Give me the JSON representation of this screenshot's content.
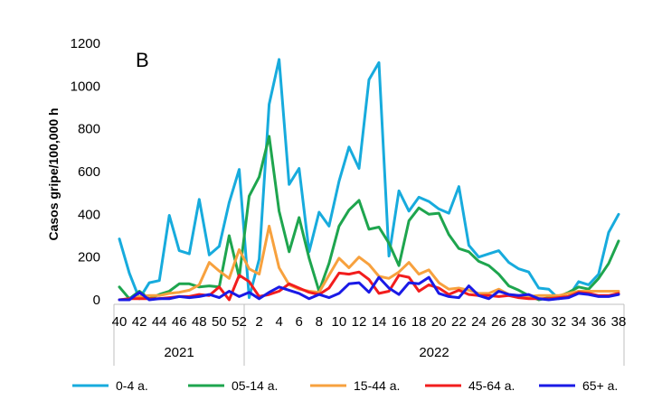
{
  "chart_data": {
    "type": "line",
    "panel_label": "B",
    "ylabel": "Casos gripe/100,000 h",
    "xlabel": "",
    "ylim": [
      0,
      1200
    ],
    "yticks": [
      0,
      200,
      400,
      600,
      800,
      1000,
      1200
    ],
    "grid": false,
    "legend_position": "bottom",
    "weeks": [
      40,
      41,
      42,
      43,
      44,
      45,
      46,
      47,
      48,
      49,
      50,
      51,
      52,
      1,
      2,
      3,
      4,
      5,
      6,
      7,
      8,
      9,
      10,
      11,
      12,
      13,
      14,
      15,
      16,
      17,
      18,
      19,
      20,
      21,
      22,
      23,
      24,
      25,
      26,
      27,
      28,
      29,
      30,
      31,
      32,
      33,
      34,
      35,
      36,
      37,
      38
    ],
    "tick_labels": [
      "40",
      "42",
      "44",
      "46",
      "48",
      "50",
      "52",
      "2",
      "4",
      "6",
      "8",
      "10",
      "12",
      "14",
      "16",
      "18",
      "20",
      "22",
      "24",
      "26",
      "28",
      "30",
      "32",
      "34",
      "36",
      "38"
    ],
    "year_groups": [
      {
        "label": "2021",
        "start_index": 0,
        "end_index": 12
      },
      {
        "label": "2022",
        "start_index": 13,
        "end_index": 50
      }
    ],
    "series": [
      {
        "name": "0-4 a.",
        "color": "#17ABDD",
        "values": [
          285,
          125,
          5,
          80,
          90,
          395,
          230,
          215,
          470,
          210,
          250,
          455,
          610,
          10,
          190,
          915,
          1125,
          540,
          615,
          225,
          410,
          345,
          555,
          715,
          615,
          1030,
          1110,
          205,
          510,
          415,
          480,
          460,
          425,
          405,
          530,
          255,
          200,
          215,
          230,
          175,
          145,
          130,
          55,
          50,
          5,
          15,
          85,
          70,
          120,
          315,
          400
        ]
      },
      {
        "name": "05-14 a.",
        "color": "#1EA54E",
        "values": [
          60,
          5,
          40,
          5,
          25,
          40,
          75,
          75,
          60,
          65,
          60,
          300,
          105,
          485,
          575,
          765,
          415,
          225,
          385,
          195,
          40,
          170,
          345,
          420,
          465,
          330,
          340,
          265,
          160,
          370,
          430,
          400,
          405,
          305,
          240,
          225,
          180,
          160,
          120,
          65,
          45,
          20,
          0,
          10,
          15,
          35,
          60,
          50,
          100,
          170,
          275
        ]
      },
      {
        "name": "15-44 a.",
        "color": "#F7A13E",
        "values": [
          0,
          5,
          15,
          20,
          20,
          30,
          35,
          45,
          70,
          175,
          135,
          100,
          235,
          145,
          120,
          345,
          150,
          70,
          50,
          40,
          35,
          115,
          195,
          150,
          200,
          165,
          110,
          100,
          130,
          175,
          120,
          140,
          80,
          50,
          55,
          45,
          30,
          30,
          50,
          25,
          20,
          15,
          20,
          20,
          20,
          30,
          40,
          40,
          40,
          40,
          40
        ]
      },
      {
        "name": "45-64 a.",
        "color": "#F21D1D",
        "values": [
          0,
          5,
          5,
          5,
          5,
          10,
          15,
          15,
          25,
          20,
          60,
          0,
          115,
          85,
          15,
          25,
          40,
          75,
          55,
          35,
          25,
          55,
          125,
          120,
          130,
          95,
          30,
          40,
          115,
          105,
          40,
          70,
          55,
          25,
          45,
          25,
          20,
          20,
          15,
          20,
          10,
          5,
          5,
          5,
          10,
          15,
          35,
          30,
          20,
          20,
          30
        ]
      },
      {
        "name": "65+ a.",
        "color": "#1A1AE6",
        "values": [
          0,
          0,
          35,
          0,
          5,
          5,
          15,
          10,
          15,
          25,
          10,
          40,
          15,
          35,
          5,
          35,
          60,
          45,
          30,
          5,
          25,
          10,
          30,
          75,
          80,
          35,
          105,
          55,
          25,
          80,
          75,
          105,
          30,
          15,
          10,
          65,
          20,
          5,
          40,
          25,
          20,
          25,
          5,
          0,
          5,
          10,
          30,
          25,
          15,
          15,
          25
        ]
      }
    ]
  }
}
